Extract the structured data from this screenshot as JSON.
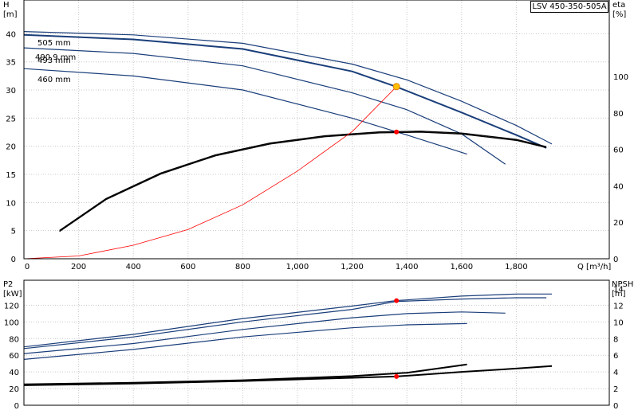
{
  "chart_data": [
    {
      "type": "line",
      "title": "",
      "legend": "LSV 450-350-505A",
      "xlabel": "Q [m³/h]",
      "ylabel_line1": "H",
      "ylabel_line2": "[m]",
      "y2label_line1": "eta",
      "y2label_line2": "[%]",
      "xlim": [
        0,
        2140
      ],
      "ylim": [
        0,
        46
      ],
      "y2lim": [
        0,
        142
      ],
      "xticks": [
        0,
        200,
        400,
        600,
        800,
        1000,
        1200,
        1400,
        1600,
        1800
      ],
      "xtick_labels": [
        "0",
        "200",
        "400",
        "600",
        "800",
        "1,000",
        "1,200",
        "1,400",
        "1,600",
        "1,800"
      ],
      "yticks": [
        0,
        5,
        10,
        15,
        20,
        25,
        30,
        35,
        40
      ],
      "y2ticks": [
        0,
        20,
        40,
        60,
        80,
        100
      ],
      "grid": true,
      "head_curves": [
        {
          "label": "505 mm",
          "color": "#1a3e7a",
          "points": [
            [
              0,
              40.4
            ],
            [
              400,
              39.8
            ],
            [
              800,
              38.3
            ],
            [
              1200,
              34.6
            ],
            [
              1400,
              31.8
            ],
            [
              1600,
              28.0
            ],
            [
              1800,
              23.7
            ],
            [
              1930,
              20.4
            ]
          ]
        },
        {
          "label": "493 mm",
          "color": "#1a3e7a",
          "points": [
            [
              0,
              39.8
            ],
            [
              400,
              39.0
            ],
            [
              800,
              37.3
            ],
            [
              1200,
              33.3
            ],
            [
              1360,
              30.6
            ],
            [
              1600,
              26.0
            ],
            [
              1800,
              22.0
            ],
            [
              1910,
              19.7
            ]
          ]
        },
        {
          "label": "460 mm",
          "color": "#1a3e7a",
          "points": [
            [
              0,
              37.5
            ],
            [
              400,
              36.5
            ],
            [
              800,
              34.3
            ],
            [
              1200,
              29.5
            ],
            [
              1400,
              26.5
            ],
            [
              1600,
              22.2
            ],
            [
              1760,
              16.8
            ]
          ]
        },
        {
          "label": "",
          "color": "#1a3e7a",
          "points": [
            [
              0,
              33.8
            ],
            [
              400,
              32.5
            ],
            [
              800,
              30.0
            ],
            [
              1200,
              25.0
            ],
            [
              1400,
              22.0
            ],
            [
              1620,
              18.6
            ]
          ]
        }
      ],
      "head_label_extra": "490.9 mm",
      "eta_curve": {
        "label": "eta",
        "color": "#000000",
        "points": [
          [
            130,
            15.5
          ],
          [
            300,
            33
          ],
          [
            500,
            47
          ],
          [
            700,
            57
          ],
          [
            900,
            63.5
          ],
          [
            1100,
            67.5
          ],
          [
            1300,
            69.6
          ],
          [
            1450,
            70
          ],
          [
            1600,
            69
          ],
          [
            1800,
            65.5
          ],
          [
            1910,
            61.5
          ]
        ]
      },
      "system_curve": {
        "color": "#ff0000",
        "points": [
          [
            0,
            0
          ],
          [
            200,
            0.5
          ],
          [
            400,
            2.4
          ],
          [
            600,
            5.2
          ],
          [
            800,
            9.6
          ],
          [
            1000,
            15.6
          ],
          [
            1200,
            22.6
          ],
          [
            1362,
            30.6
          ]
        ]
      },
      "duty_point": {
        "Q": 1362,
        "H": 30.6,
        "eta": 69.6
      }
    },
    {
      "type": "line",
      "title": "",
      "xlabel": "",
      "ylabel_line1": "P2",
      "ylabel_line2": "[kW]",
      "y2label_line1": "NPSH",
      "y2label_line2": "[m]",
      "xlim": [
        0,
        2140
      ],
      "ylim": [
        0,
        150
      ],
      "y2lim": [
        0,
        15
      ],
      "yticks": [
        0,
        20,
        40,
        60,
        80,
        100,
        120
      ],
      "y2ticks": [
        0,
        2,
        4,
        6,
        8,
        10,
        12,
        14
      ],
      "grid": true,
      "power_curves": [
        {
          "color": "#1a3e7a",
          "points": [
            [
              0,
              70
            ],
            [
              400,
              85
            ],
            [
              800,
              104
            ],
            [
              1200,
              119
            ],
            [
              1360,
              125.5
            ],
            [
              1600,
              131
            ],
            [
              1800,
              133.5
            ],
            [
              1930,
              133.5
            ]
          ]
        },
        {
          "color": "#1a3e7a",
          "points": [
            [
              0,
              68
            ],
            [
              400,
              82
            ],
            [
              800,
              100
            ],
            [
              1200,
              115
            ],
            [
              1360,
              124.5
            ],
            [
              1600,
              127.5
            ],
            [
              1800,
              129
            ],
            [
              1910,
              129
            ]
          ]
        },
        {
          "color": "#1a3e7a",
          "points": [
            [
              0,
              62
            ],
            [
              400,
              74
            ],
            [
              800,
              91
            ],
            [
              1200,
              105
            ],
            [
              1400,
              110
            ],
            [
              1600,
              112
            ],
            [
              1760,
              110.5
            ]
          ]
        },
        {
          "color": "#1a3e7a",
          "points": [
            [
              0,
              55
            ],
            [
              400,
              67
            ],
            [
              800,
              82
            ],
            [
              1200,
              93
            ],
            [
              1400,
              96.5
            ],
            [
              1620,
              98
            ]
          ]
        }
      ],
      "npsh_curves": [
        {
          "color": "#000000",
          "points": [
            [
              0,
              2.4
            ],
            [
              400,
              2.6
            ],
            [
              800,
              2.9
            ],
            [
              1200,
              3.3
            ],
            [
              1360,
              3.45
            ],
            [
              1600,
              4.0
            ],
            [
              1800,
              4.4
            ],
            [
              1930,
              4.7
            ]
          ]
        },
        {
          "color": "#000000",
          "points": [
            [
              0,
              2.5
            ],
            [
              400,
              2.7
            ],
            [
              800,
              3.0
            ],
            [
              1200,
              3.5
            ],
            [
              1400,
              3.9
            ],
            [
              1620,
              4.9
            ]
          ]
        }
      ],
      "duty_point": {
        "Q": 1362,
        "P2": 125.5,
        "NPSH": 3.45
      }
    }
  ]
}
